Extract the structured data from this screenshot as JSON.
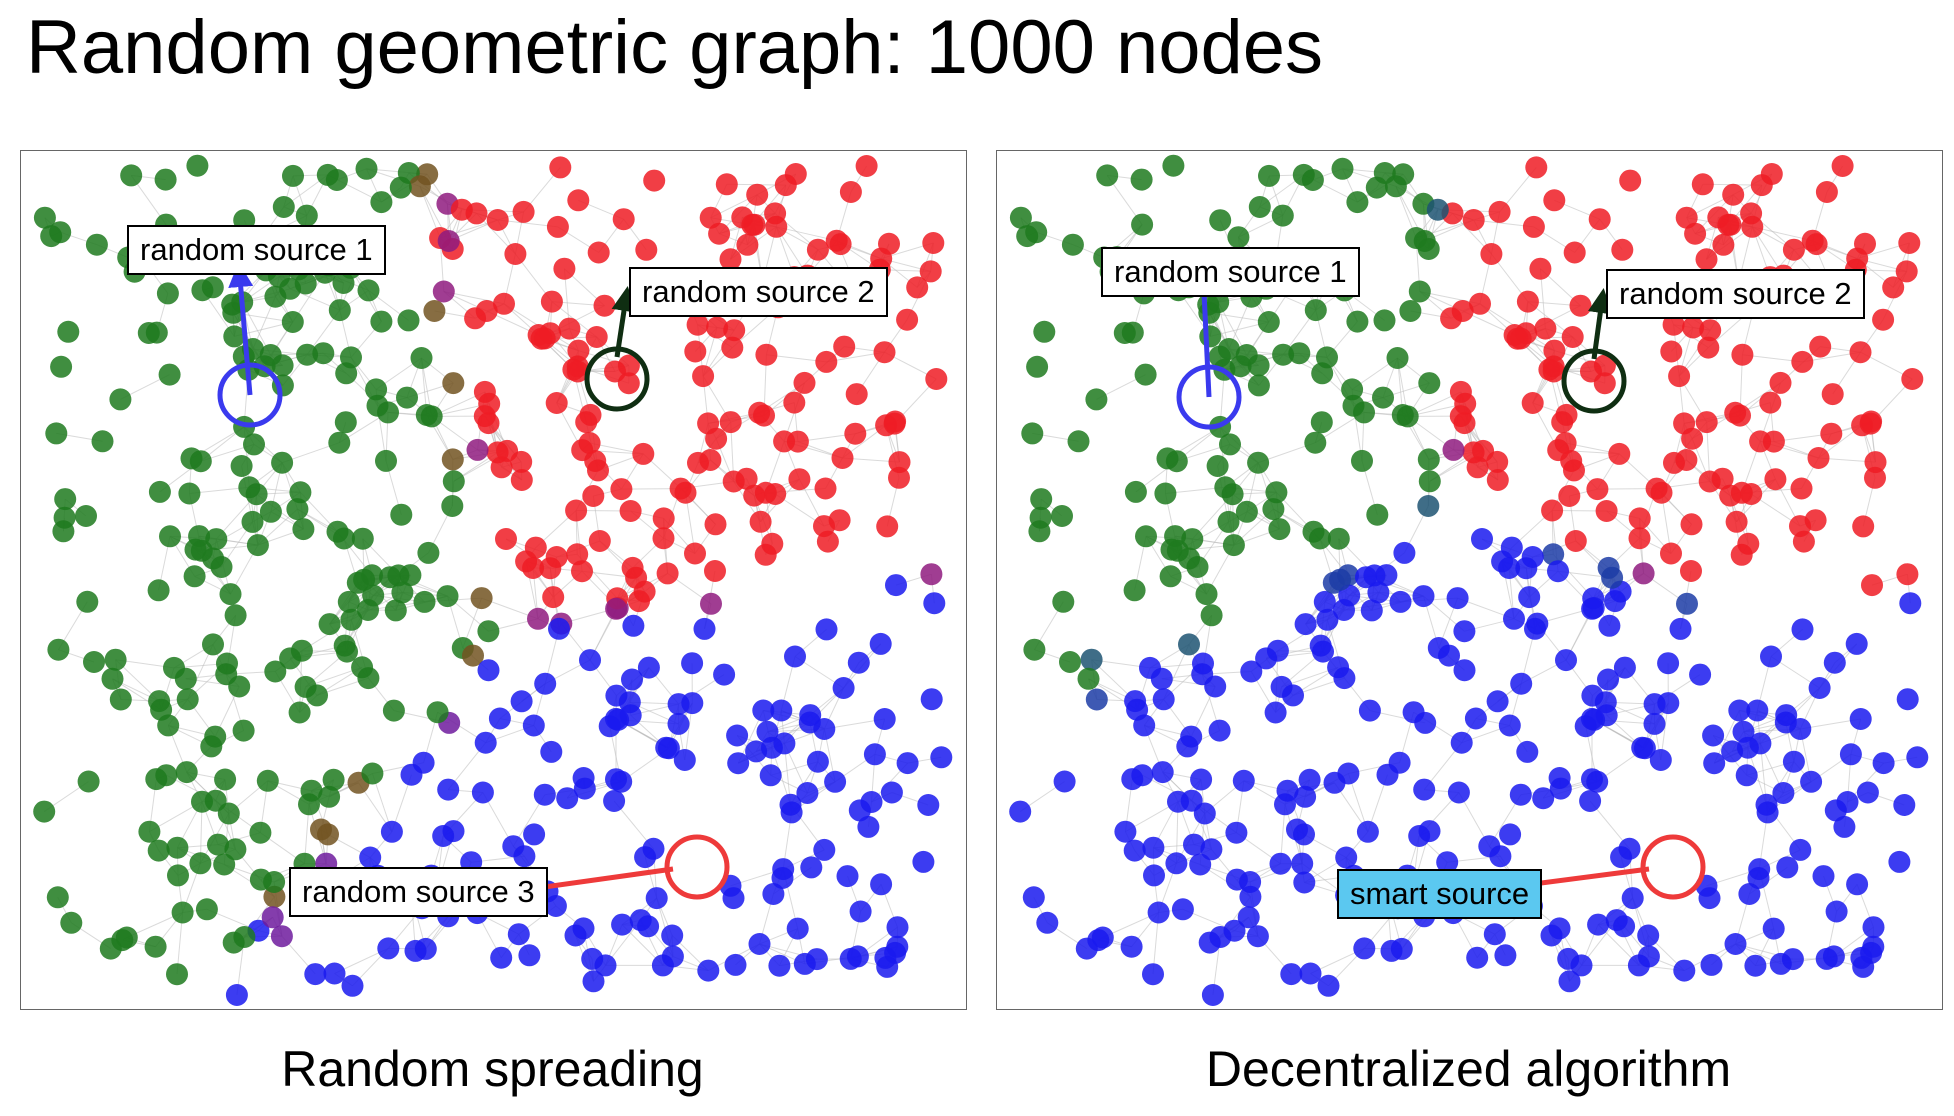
{
  "title": "Random geometric graph: 1000 nodes",
  "panels": [
    {
      "caption": "Random spreading",
      "sources": [
        {
          "label": "random source 1",
          "marker_color": "#3a3aee",
          "kind": "random"
        },
        {
          "label": "random source 2",
          "marker_color": "#0f2e12",
          "kind": "random"
        },
        {
          "label": "random source 3",
          "marker_color": "#ee3a3a",
          "kind": "random"
        }
      ]
    },
    {
      "caption": "Decentralized algorithm",
      "sources": [
        {
          "label": "random source 1",
          "marker_color": "#3a3aee",
          "kind": "random"
        },
        {
          "label": "random source 2",
          "marker_color": "#0f2e12",
          "kind": "random"
        },
        {
          "label": "smart source",
          "marker_color": "#ee3a3a",
          "kind": "smart"
        }
      ]
    }
  ],
  "node_count": 1000,
  "colors": {
    "green": "#1f7a1f",
    "red": "#ee1c24",
    "blue": "#1a1aee",
    "smart_fill": "#5bc8f0",
    "edge": "#bbbbbb"
  }
}
